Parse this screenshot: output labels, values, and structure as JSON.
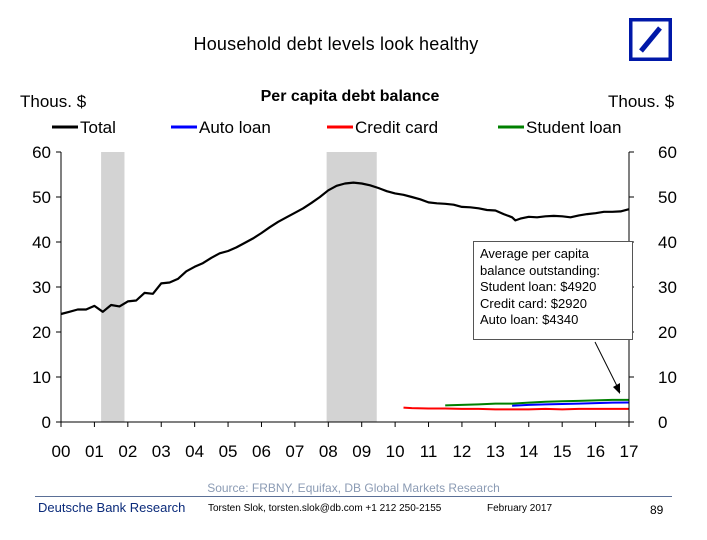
{
  "slide": {
    "title": "Household debt levels look healthy",
    "source": "Source: FRBNY, Equifax, DB Global Markets Research",
    "footer_org": "Deutsche Bank Research",
    "footer_contact": "Torsten Slok, torsten.slok@db.com  +1 212 250-2155",
    "footer_date": "February 2017",
    "page_number": "89",
    "logo_icon": "deutsche-bank-slash-logo",
    "logo_color": "#0018a8"
  },
  "chart_data": {
    "type": "line",
    "title": "Per capita debt balance",
    "ylabel_left": "Thous. $",
    "ylabel_right": "Thous. $",
    "ylim": [
      0,
      60
    ],
    "yticks": [
      0,
      10,
      20,
      30,
      40,
      50,
      60
    ],
    "xlim": [
      2000,
      2017
    ],
    "xticks": [
      {
        "year": 2000,
        "label": "00"
      },
      {
        "year": 2001,
        "label": "01"
      },
      {
        "year": 2002,
        "label": "02"
      },
      {
        "year": 2003,
        "label": "03"
      },
      {
        "year": 2004,
        "label": "04"
      },
      {
        "year": 2005,
        "label": "05"
      },
      {
        "year": 2006,
        "label": "06"
      },
      {
        "year": 2007,
        "label": "07"
      },
      {
        "year": 2008,
        "label": "08"
      },
      {
        "year": 2009,
        "label": "09"
      },
      {
        "year": 2010,
        "label": "10"
      },
      {
        "year": 2011,
        "label": "11"
      },
      {
        "year": 2012,
        "label": "12"
      },
      {
        "year": 2013,
        "label": "13"
      },
      {
        "year": 2014,
        "label": "14"
      },
      {
        "year": 2015,
        "label": "15"
      },
      {
        "year": 2016,
        "label": "16"
      },
      {
        "year": 2017,
        "label": "17"
      }
    ],
    "legend_placement": "top",
    "recession_shading": [
      {
        "start": 2001.2,
        "end": 2001.9
      },
      {
        "start": 2007.95,
        "end": 2009.45
      }
    ],
    "recession_color": "#d3d3d3",
    "series": [
      {
        "name": "Total",
        "color": "#000000",
        "points": [
          [
            2000.0,
            24.0
          ],
          [
            2000.25,
            24.5
          ],
          [
            2000.5,
            25.0
          ],
          [
            2000.75,
            25.0
          ],
          [
            2001.0,
            25.8
          ],
          [
            2001.25,
            24.5
          ],
          [
            2001.5,
            26.0
          ],
          [
            2001.75,
            25.7
          ],
          [
            2002.0,
            26.8
          ],
          [
            2002.25,
            27.0
          ],
          [
            2002.5,
            28.7
          ],
          [
            2002.75,
            28.5
          ],
          [
            2003.0,
            30.8
          ],
          [
            2003.25,
            31.0
          ],
          [
            2003.5,
            31.8
          ],
          [
            2003.75,
            33.5
          ],
          [
            2004.0,
            34.5
          ],
          [
            2004.25,
            35.3
          ],
          [
            2004.5,
            36.5
          ],
          [
            2004.75,
            37.5
          ],
          [
            2005.0,
            38.0
          ],
          [
            2005.25,
            38.8
          ],
          [
            2005.5,
            39.8
          ],
          [
            2005.75,
            40.8
          ],
          [
            2006.0,
            42.0
          ],
          [
            2006.25,
            43.3
          ],
          [
            2006.5,
            44.5
          ],
          [
            2006.75,
            45.5
          ],
          [
            2007.0,
            46.5
          ],
          [
            2007.25,
            47.5
          ],
          [
            2007.5,
            48.7
          ],
          [
            2007.75,
            50.0
          ],
          [
            2008.0,
            51.5
          ],
          [
            2008.25,
            52.5
          ],
          [
            2008.5,
            53.0
          ],
          [
            2008.75,
            53.2
          ],
          [
            2009.0,
            53.0
          ],
          [
            2009.25,
            52.6
          ],
          [
            2009.5,
            52.0
          ],
          [
            2009.75,
            51.3
          ],
          [
            2010.0,
            50.8
          ],
          [
            2010.25,
            50.5
          ],
          [
            2010.5,
            50.0
          ],
          [
            2010.75,
            49.5
          ],
          [
            2011.0,
            48.8
          ],
          [
            2011.25,
            48.6
          ],
          [
            2011.5,
            48.5
          ],
          [
            2011.75,
            48.3
          ],
          [
            2012.0,
            47.8
          ],
          [
            2012.25,
            47.7
          ],
          [
            2012.5,
            47.5
          ],
          [
            2012.75,
            47.1
          ],
          [
            2013.0,
            47.0
          ],
          [
            2013.25,
            46.2
          ],
          [
            2013.5,
            45.5
          ],
          [
            2013.6,
            44.8
          ],
          [
            2013.75,
            45.2
          ],
          [
            2014.0,
            45.6
          ],
          [
            2014.25,
            45.5
          ],
          [
            2014.5,
            45.7
          ],
          [
            2014.75,
            45.8
          ],
          [
            2015.0,
            45.7
          ],
          [
            2015.25,
            45.5
          ],
          [
            2015.5,
            45.9
          ],
          [
            2015.75,
            46.2
          ],
          [
            2016.0,
            46.4
          ],
          [
            2016.25,
            46.7
          ],
          [
            2016.5,
            46.7
          ],
          [
            2016.75,
            46.8
          ],
          [
            2017.0,
            47.3
          ]
        ]
      },
      {
        "name": "Auto loan",
        "color": "#0000ff",
        "points": [
          [
            2013.5,
            3.6
          ],
          [
            2014.0,
            3.8
          ],
          [
            2014.5,
            3.9
          ],
          [
            2015.0,
            4.0
          ],
          [
            2015.5,
            4.1
          ],
          [
            2016.0,
            4.2
          ],
          [
            2016.5,
            4.3
          ],
          [
            2017.0,
            4.34
          ]
        ]
      },
      {
        "name": "Credit card",
        "color": "#ff0000",
        "points": [
          [
            2010.25,
            3.2
          ],
          [
            2010.5,
            3.1
          ],
          [
            2011.0,
            3.0
          ],
          [
            2011.5,
            3.0
          ],
          [
            2012.0,
            2.9
          ],
          [
            2012.5,
            2.9
          ],
          [
            2013.0,
            2.8
          ],
          [
            2013.5,
            2.8
          ],
          [
            2014.0,
            2.8
          ],
          [
            2014.5,
            2.9
          ],
          [
            2015.0,
            2.8
          ],
          [
            2015.5,
            2.9
          ],
          [
            2016.0,
            2.9
          ],
          [
            2016.5,
            2.9
          ],
          [
            2017.0,
            2.92
          ]
        ]
      },
      {
        "name": "Student loan",
        "color": "#008000",
        "points": [
          [
            2011.5,
            3.7
          ],
          [
            2012.0,
            3.8
          ],
          [
            2012.5,
            3.9
          ],
          [
            2013.0,
            4.1
          ],
          [
            2013.5,
            4.1
          ],
          [
            2014.0,
            4.3
          ],
          [
            2014.5,
            4.5
          ],
          [
            2015.0,
            4.6
          ],
          [
            2015.5,
            4.7
          ],
          [
            2016.0,
            4.8
          ],
          [
            2016.5,
            4.9
          ],
          [
            2017.0,
            4.92
          ]
        ]
      }
    ],
    "annotation": {
      "lines": [
        "Average per capita",
        "balance outstanding:",
        "Student loan: $4920",
        "Credit card: $2920",
        "Auto loan: $4340"
      ]
    }
  }
}
